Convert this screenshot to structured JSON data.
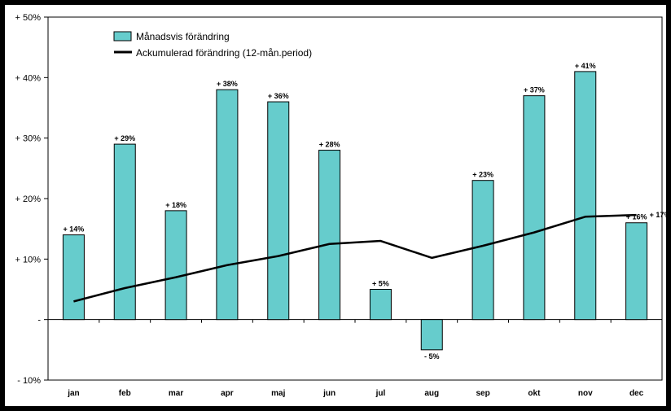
{
  "chart_data": {
    "type": "bar",
    "categories": [
      "jan",
      "feb",
      "mar",
      "apr",
      "maj",
      "jun",
      "jul",
      "aug",
      "sep",
      "okt",
      "nov",
      "dec"
    ],
    "ylim": [
      -10,
      50
    ],
    "yticks": [
      -10,
      0,
      10,
      20,
      30,
      40,
      50
    ],
    "ytick_labels": [
      "- 10%",
      "-",
      "+ 10%",
      "+ 20%",
      "+ 30%",
      "+ 40%",
      "+ 50%"
    ],
    "grid": false,
    "legend_position": "top-left",
    "series": [
      {
        "name": "Månadsvis förändring",
        "type": "bar",
        "color": "#66CCCC",
        "values": [
          14,
          29,
          18,
          38,
          36,
          28,
          5,
          -5,
          23,
          37,
          41,
          16
        ],
        "value_labels": [
          "+ 14%",
          "+ 29%",
          "+ 18%",
          "+ 38%",
          "+ 36%",
          "+ 28%",
          "+ 5%",
          "- 5%",
          "+ 23%",
          "+ 37%",
          "+ 41%",
          "+ 16%"
        ]
      },
      {
        "name": "Ackumulerad förändring (12-mån.period)",
        "type": "line",
        "color": "#000000",
        "values": [
          3,
          5.2,
          7,
          9,
          10.5,
          12.5,
          13,
          10.2,
          12.2,
          14.4,
          17,
          17.3
        ],
        "end_label": "+ 17%"
      }
    ]
  }
}
